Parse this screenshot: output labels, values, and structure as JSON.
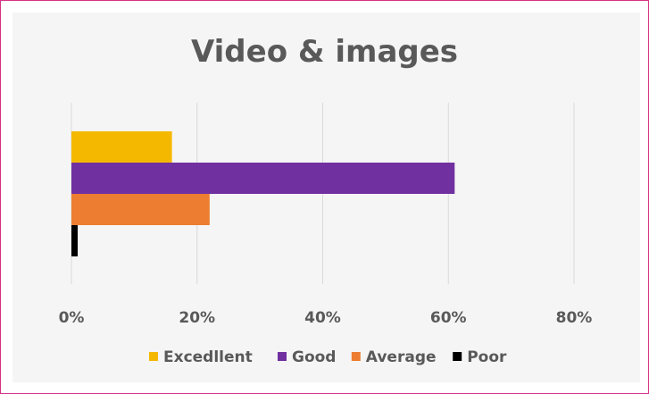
{
  "chart_data": {
    "type": "bar",
    "orientation": "horizontal",
    "title": "Video & images",
    "xlabel": "",
    "ylabel": "",
    "xlim": [
      0,
      80
    ],
    "x_ticks": [
      "0%",
      "20%",
      "40%",
      "60%",
      "80%"
    ],
    "x_tick_values": [
      0,
      20,
      40,
      60,
      80
    ],
    "grid": true,
    "legend_position": "bottom",
    "series": [
      {
        "name": "Excedllent",
        "value": 16,
        "color": "#f5b800"
      },
      {
        "name": "Good",
        "value": 61,
        "color": "#7030a0"
      },
      {
        "name": "Average",
        "value": 22,
        "color": "#ed7d31"
      },
      {
        "name": "Poor",
        "value": 1,
        "color": "#000000"
      }
    ]
  },
  "colors": {
    "frame_border": "#d63384",
    "panel_background": "#f5f5f5",
    "gridline": "#d9d9d9",
    "text": "#595959"
  }
}
